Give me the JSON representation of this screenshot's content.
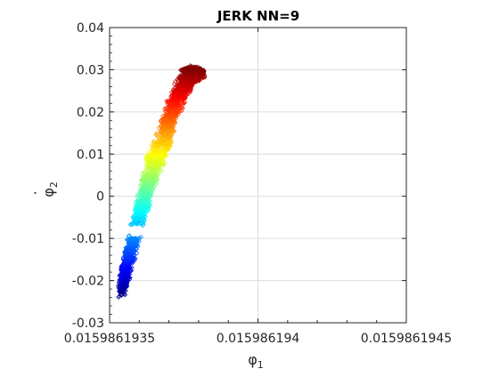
{
  "chart_data": {
    "type": "scatter",
    "title": "JERK NN=9",
    "xlabel": {
      "base": "φ",
      "sub": "1"
    },
    "ylabel": {
      "base": "φ",
      "dot": "·",
      "sub": "2"
    },
    "xlim": [
      0.0159861935,
      0.0159861945
    ],
    "ylim": [
      -0.03,
      0.04
    ],
    "x_ticks": [
      0.0159861935,
      0.015986194,
      0.0159861945
    ],
    "x_tick_labels": [
      "0.0159861935",
      "0.015986194",
      "0.0159861945"
    ],
    "y_ticks": [
      -0.03,
      -0.02,
      -0.01,
      0,
      0.01,
      0.02,
      0.03,
      0.04
    ],
    "y_tick_labels": [
      "-0.03",
      "-0.02",
      "-0.01",
      "0",
      "0.01",
      "0.02",
      "0.03",
      "0.04"
    ],
    "grid": true,
    "marker": "diamond",
    "colormap": "jet",
    "point_cloud": {
      "description": "dense band of points colored by phi2 value",
      "spine": [
        [
          0.01598619354,
          -0.022
        ],
        [
          0.01598619356,
          -0.016
        ],
        [
          0.01598619358,
          -0.01
        ],
        [
          0.01598619361,
          -0.002
        ],
        [
          0.01598619364,
          0.006
        ],
        [
          0.01598619368,
          0.013
        ],
        [
          0.01598619371,
          0.02
        ],
        [
          0.01598619375,
          0.0265
        ],
        [
          0.01598619378,
          0.029
        ],
        [
          0.01598619381,
          0.029
        ]
      ],
      "half_width_y": [
        0.002,
        0.003,
        0.0038,
        0.0042,
        0.0045,
        0.0045,
        0.0042,
        0.0035,
        0.002,
        0.001
      ],
      "hole": {
        "x": 0.01598619359,
        "y": -0.0083
      }
    },
    "colors": {
      "axis": "#262626",
      "grid": "#dcdcdc",
      "background": "#ffffff"
    }
  }
}
